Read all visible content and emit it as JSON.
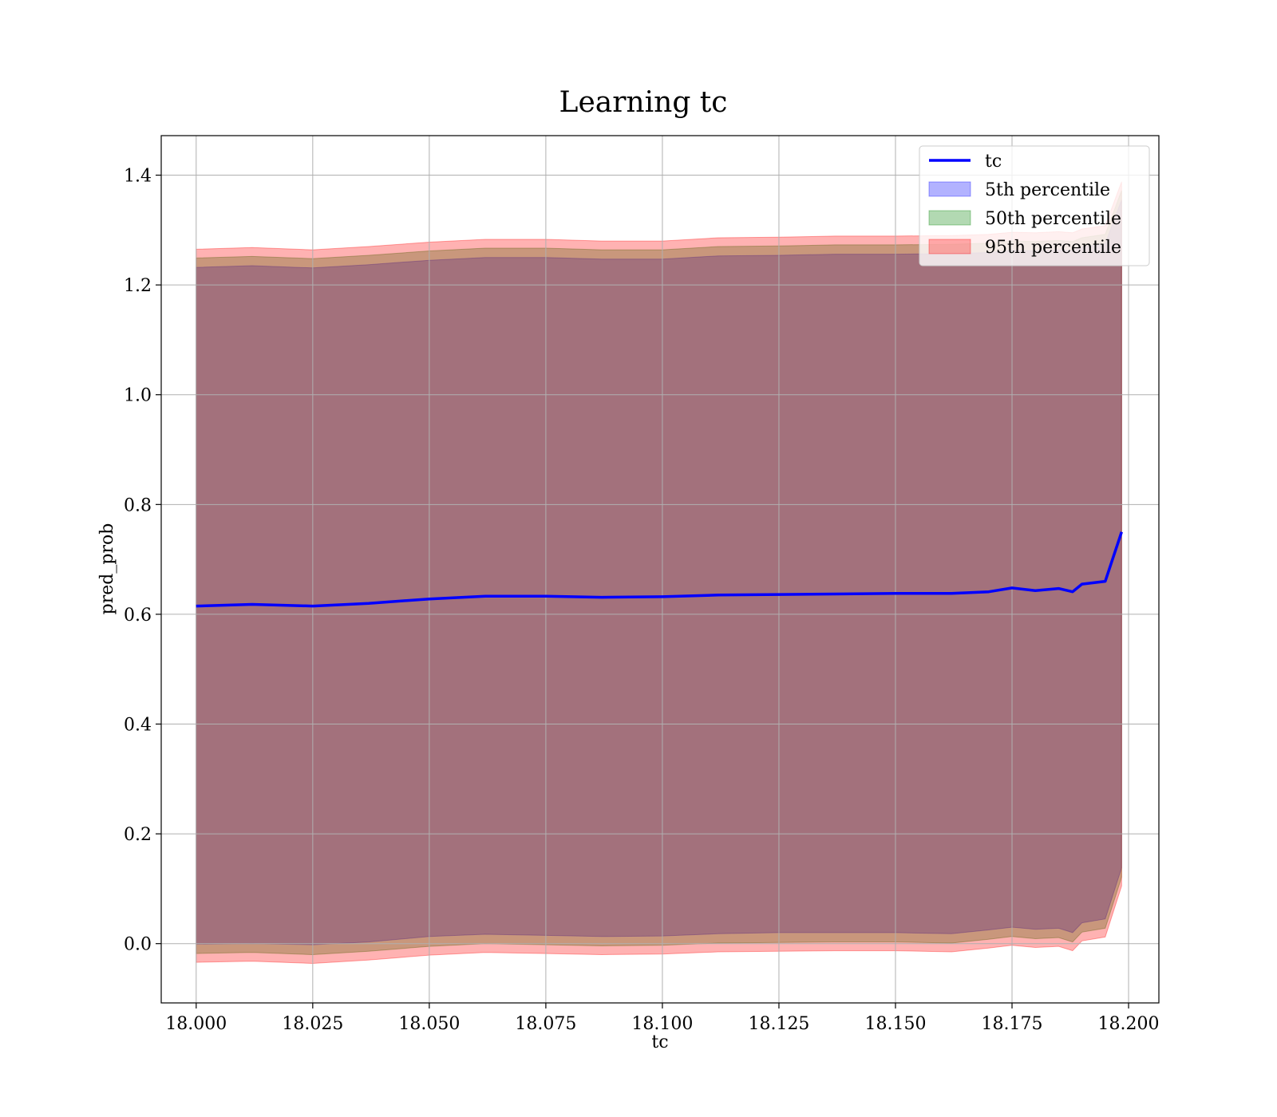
{
  "chart_data": {
    "type": "line",
    "title": "Learning tc",
    "xlabel": "tc",
    "ylabel": "pred_prob",
    "xlim": [
      17.9925,
      18.2065
    ],
    "ylim": [
      -0.108,
      1.472
    ],
    "xticks": [
      18.0,
      18.025,
      18.05,
      18.075,
      18.1,
      18.125,
      18.15,
      18.175,
      18.2
    ],
    "xtick_labels": [
      "18.000",
      "18.025",
      "18.050",
      "18.075",
      "18.100",
      "18.125",
      "18.150",
      "18.175",
      "18.200"
    ],
    "yticks": [
      0.0,
      0.2,
      0.4,
      0.6,
      0.8,
      1.0,
      1.2,
      1.4
    ],
    "ytick_labels": [
      "0.0",
      "0.2",
      "0.4",
      "0.6",
      "0.8",
      "1.0",
      "1.2",
      "1.4"
    ],
    "grid": true,
    "legend_position": "top-right",
    "x": [
      18.0,
      18.012,
      18.025,
      18.037,
      18.05,
      18.062,
      18.075,
      18.087,
      18.1,
      18.112,
      18.125,
      18.137,
      18.15,
      18.162,
      18.17,
      18.175,
      18.18,
      18.185,
      18.188,
      18.19,
      18.195,
      18.1985
    ],
    "series": [
      {
        "name": "tc",
        "kind": "line",
        "color": "#0000ff",
        "y": [
          0.615,
          0.618,
          0.615,
          0.62,
          0.628,
          0.633,
          0.633,
          0.631,
          0.632,
          0.635,
          0.636,
          0.637,
          0.638,
          0.638,
          0.641,
          0.648,
          0.643,
          0.647,
          0.641,
          0.655,
          0.66,
          0.75
        ]
      },
      {
        "name": "5th percentile",
        "kind": "band",
        "color": "#0000ff",
        "lower": [
          -0.001,
          0.0,
          -0.002,
          0.003,
          0.013,
          0.017,
          0.015,
          0.013,
          0.014,
          0.018,
          0.02,
          0.02,
          0.02,
          0.018,
          0.025,
          0.03,
          0.026,
          0.028,
          0.02,
          0.038,
          0.045,
          0.138
        ],
        "upper": [
          1.232,
          1.235,
          1.231,
          1.237,
          1.245,
          1.25,
          1.25,
          1.247,
          1.247,
          1.253,
          1.254,
          1.256,
          1.256,
          1.257,
          1.259,
          1.263,
          1.262,
          1.264,
          1.262,
          1.269,
          1.275,
          1.355
        ]
      },
      {
        "name": "50th percentile",
        "kind": "band",
        "color": "#008000",
        "lower": [
          -0.018,
          -0.016,
          -0.02,
          -0.014,
          -0.005,
          0.0,
          -0.002,
          -0.004,
          -0.003,
          0.001,
          0.002,
          0.003,
          0.003,
          0.001,
          0.008,
          0.013,
          0.009,
          0.011,
          0.003,
          0.021,
          0.028,
          0.121
        ],
        "upper": [
          1.249,
          1.252,
          1.248,
          1.254,
          1.262,
          1.267,
          1.267,
          1.264,
          1.264,
          1.27,
          1.271,
          1.273,
          1.273,
          1.274,
          1.276,
          1.28,
          1.279,
          1.281,
          1.279,
          1.286,
          1.292,
          1.372
        ]
      },
      {
        "name": "95th percentile",
        "kind": "band",
        "color": "#ff0000",
        "lower": [
          -0.034,
          -0.032,
          -0.036,
          -0.03,
          -0.021,
          -0.016,
          -0.018,
          -0.02,
          -0.019,
          -0.015,
          -0.014,
          -0.013,
          -0.013,
          -0.015,
          -0.008,
          -0.003,
          -0.007,
          -0.005,
          -0.013,
          0.005,
          0.012,
          0.105
        ],
        "upper": [
          1.265,
          1.268,
          1.264,
          1.27,
          1.278,
          1.283,
          1.283,
          1.28,
          1.28,
          1.286,
          1.287,
          1.289,
          1.289,
          1.29,
          1.292,
          1.296,
          1.295,
          1.297,
          1.295,
          1.302,
          1.308,
          1.388
        ]
      }
    ]
  }
}
